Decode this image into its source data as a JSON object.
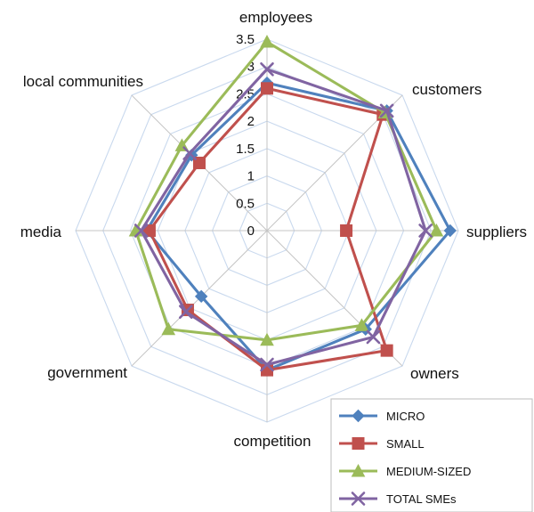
{
  "chart_data": {
    "type": "radar",
    "categories": [
      "employees",
      "customers",
      "suppliers",
      "owners",
      "competition",
      "government",
      "media",
      "local communities"
    ],
    "r_ticks": [
      "0",
      "0.5",
      "1",
      "1.5",
      "2",
      "2.5",
      "3",
      "3.5"
    ],
    "rlim": [
      0,
      3.5
    ],
    "grid": true,
    "legend_position": "bottom-right",
    "series": [
      {
        "name": "MICRO",
        "color": "#4F81BD",
        "marker": "diamond",
        "values": [
          2.7,
          3.1,
          3.35,
          2.55,
          2.55,
          1.7,
          2.2,
          1.95
        ]
      },
      {
        "name": "SMALL",
        "color": "#C0504D",
        "marker": "square",
        "values": [
          2.6,
          3.0,
          1.45,
          3.1,
          2.55,
          2.05,
          2.15,
          1.75
        ]
      },
      {
        "name": "MEDIUM-SIZED",
        "color": "#9BBB59",
        "marker": "triangle",
        "values": [
          3.45,
          3.05,
          3.1,
          2.45,
          2.0,
          2.55,
          2.4,
          2.2
        ]
      },
      {
        "name": "TOTAL SMEs",
        "color": "#8064A2",
        "marker": "x",
        "values": [
          2.95,
          3.1,
          2.9,
          2.75,
          2.45,
          2.1,
          2.3,
          2.0
        ]
      }
    ]
  }
}
